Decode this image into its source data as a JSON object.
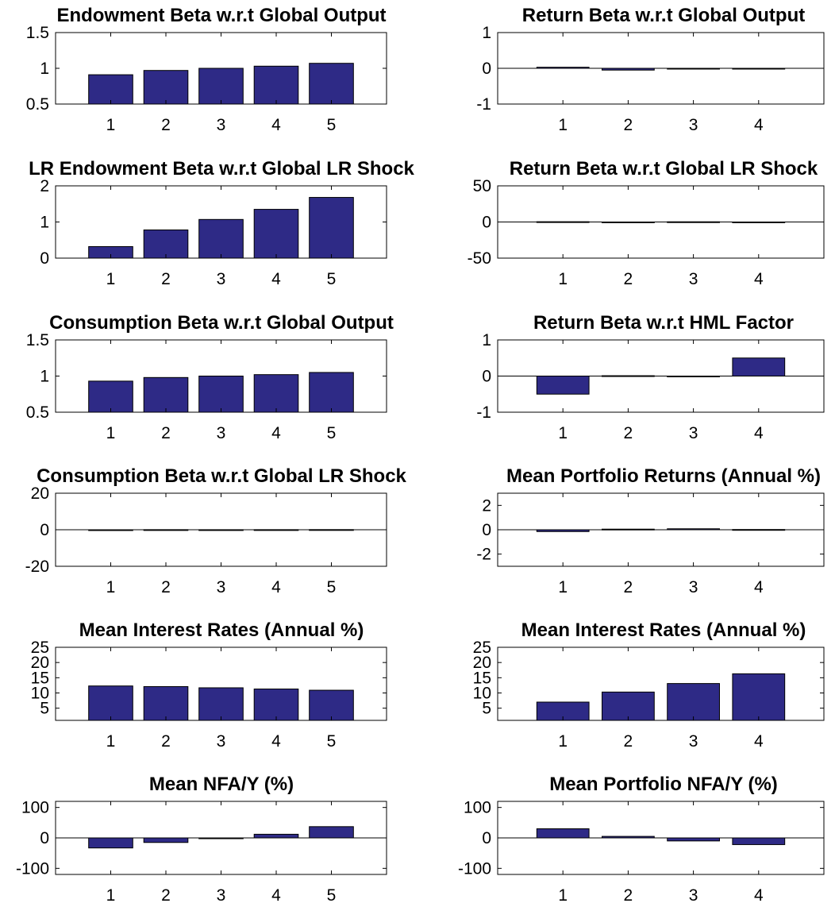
{
  "colors": {
    "bar_fill": "#2e2a86",
    "bar_edge": "#000000",
    "axis": "#000000",
    "background": "#ffffff"
  },
  "chart_data": [
    {
      "type": "bar",
      "title": "Endowment Beta w.r.t Global Output",
      "categories": [
        "1",
        "2",
        "3",
        "4",
        "5"
      ],
      "values": [
        0.91,
        0.97,
        1.0,
        1.03,
        1.07
      ],
      "ylim": [
        0.5,
        1.5
      ],
      "yticks": [
        0.5,
        1,
        1.5
      ],
      "ytick_labels": [
        "0.5",
        "1",
        "1.5"
      ],
      "zero_line": false
    },
    {
      "type": "bar",
      "title": "Return Beta w.r.t Global Output",
      "categories": [
        "1",
        "2",
        "3",
        "4"
      ],
      "values": [
        0.03,
        -0.05,
        -0.02,
        -0.02
      ],
      "ylim": [
        -1,
        1
      ],
      "yticks": [
        -1,
        0,
        1
      ],
      "ytick_labels": [
        "-1",
        "0",
        "1"
      ],
      "zero_line": true
    },
    {
      "type": "bar",
      "title": "LR Endowment Beta w.r.t Global LR Shock",
      "categories": [
        "1",
        "2",
        "3",
        "4",
        "5"
      ],
      "values": [
        0.32,
        0.78,
        1.07,
        1.35,
        1.68
      ],
      "ylim": [
        0,
        2
      ],
      "yticks": [
        0,
        1,
        2
      ],
      "ytick_labels": [
        "0",
        "1",
        "2"
      ],
      "zero_line": false
    },
    {
      "type": "bar",
      "title": "Return Beta w.r.t Global LR Shock",
      "categories": [
        "1",
        "2",
        "3",
        "4"
      ],
      "values": [
        0.4,
        -0.5,
        0.3,
        -0.4
      ],
      "ylim": [
        -50,
        50
      ],
      "yticks": [
        -50,
        0,
        50
      ],
      "ytick_labels": [
        "-50",
        "0",
        "50"
      ],
      "zero_line": true
    },
    {
      "type": "bar",
      "title": "Consumption Beta w.r.t Global Output",
      "categories": [
        "1",
        "2",
        "3",
        "4",
        "5"
      ],
      "values": [
        0.93,
        0.98,
        1.0,
        1.02,
        1.05
      ],
      "ylim": [
        0.5,
        1.5
      ],
      "yticks": [
        0.5,
        1,
        1.5
      ],
      "ytick_labels": [
        "0.5",
        "1",
        "1.5"
      ],
      "zero_line": false
    },
    {
      "type": "bar",
      "title": "Return Beta w.r.t HML Factor",
      "categories": [
        "1",
        "2",
        "3",
        "4"
      ],
      "values": [
        -0.5,
        0.01,
        -0.01,
        0.5
      ],
      "ylim": [
        -1,
        1
      ],
      "yticks": [
        -1,
        0,
        1
      ],
      "ytick_labels": [
        "-1",
        "0",
        "1"
      ],
      "zero_line": true
    },
    {
      "type": "bar",
      "title": "Consumption Beta w.r.t Global LR Shock",
      "categories": [
        "1",
        "2",
        "3",
        "4",
        "5"
      ],
      "values": [
        -0.1,
        0.05,
        0.03,
        0.05,
        0.08
      ],
      "ylim": [
        -20,
        20
      ],
      "yticks": [
        -20,
        0,
        20
      ],
      "ytick_labels": [
        "-20",
        "0",
        "20"
      ],
      "zero_line": true
    },
    {
      "type": "bar",
      "title": "Mean Portfolio Returns (Annual %)",
      "categories": [
        "1",
        "2",
        "3",
        "4"
      ],
      "values": [
        -0.15,
        0.05,
        0.08,
        0.02
      ],
      "ylim": [
        -3,
        3
      ],
      "yticks": [
        -2,
        0,
        2
      ],
      "ytick_labels": [
        "-2",
        "0",
        "2"
      ],
      "zero_line": true
    },
    {
      "type": "bar",
      "title": "Mean Interest Rates (Annual %)",
      "categories": [
        "1",
        "2",
        "3",
        "4",
        "5"
      ],
      "values": [
        12.3,
        12.1,
        11.7,
        11.3,
        10.9
      ],
      "ylim": [
        1,
        25
      ],
      "yticks": [
        5,
        10,
        15,
        20,
        25
      ],
      "ytick_labels": [
        "5",
        "10",
        "15",
        "20",
        "25"
      ],
      "zero_line": false
    },
    {
      "type": "bar",
      "title": "Mean Interest Rates (Annual %)",
      "categories": [
        "1",
        "2",
        "3",
        "4"
      ],
      "values": [
        7.0,
        10.3,
        13.1,
        16.3
      ],
      "ylim": [
        1,
        25
      ],
      "yticks": [
        5,
        10,
        15,
        20,
        25
      ],
      "ytick_labels": [
        "5",
        "10",
        "15",
        "20",
        "25"
      ],
      "zero_line": false
    },
    {
      "type": "bar",
      "title": "Mean NFA/Y (%)",
      "categories": [
        "1",
        "2",
        "3",
        "4",
        "5"
      ],
      "values": [
        -33,
        -15,
        -2,
        12,
        37
      ],
      "ylim": [
        -120,
        120
      ],
      "yticks": [
        -100,
        0,
        100
      ],
      "ytick_labels": [
        "-100",
        "0",
        "100"
      ],
      "zero_line": true
    },
    {
      "type": "bar",
      "title": "Mean Portfolio NFA/Y (%)",
      "categories": [
        "1",
        "2",
        "3",
        "4"
      ],
      "values": [
        30,
        5,
        -10,
        -22
      ],
      "ylim": [
        -120,
        120
      ],
      "yticks": [
        -100,
        0,
        100
      ],
      "ytick_labels": [
        "-100",
        "0",
        "100"
      ],
      "zero_line": true
    }
  ]
}
